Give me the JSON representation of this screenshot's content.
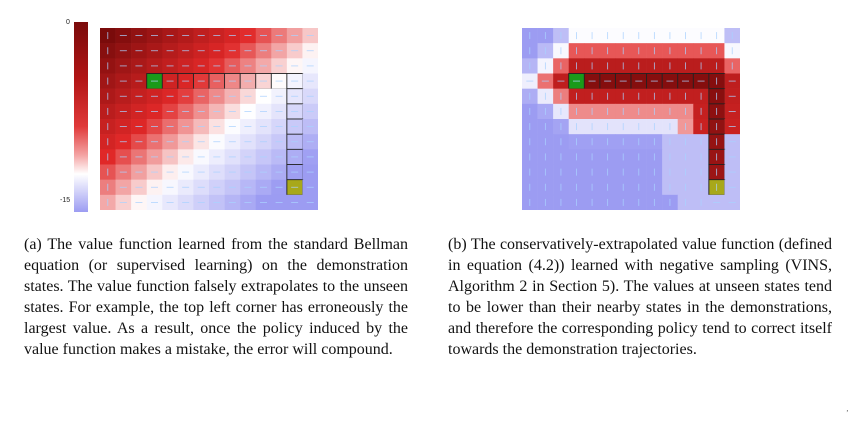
{
  "figure_a": {
    "colorbar": {
      "max_label": "0",
      "min_label": "-15",
      "colors": [
        "#7a0b0b",
        "#b21515",
        "#e03a3a",
        "#f4a3a3",
        "#ffffff",
        "#9c9cf2"
      ]
    },
    "caption": "(a) The value function learned from the standard Bellman equation (or supervised learning) on the demonstration states. The value function falsely extrapolates to the unseen states. For example, the top left corner has erroneously the largest value. As a result, once the policy induced by the value function makes a mistake, the error will compound."
  },
  "figure_b": {
    "caption": "(b) The conservatively-extrapolated value function (defined in equation (4.2)) learned with negative sampling (VINS, Algorithm 2 in Section 5). The values at unseen states tend to be lower than their nearby states in the demonstrations, and therefore the corresponding policy tend to correct itself towards the demonstration trajectories."
  },
  "stray_mark": "‚"
}
